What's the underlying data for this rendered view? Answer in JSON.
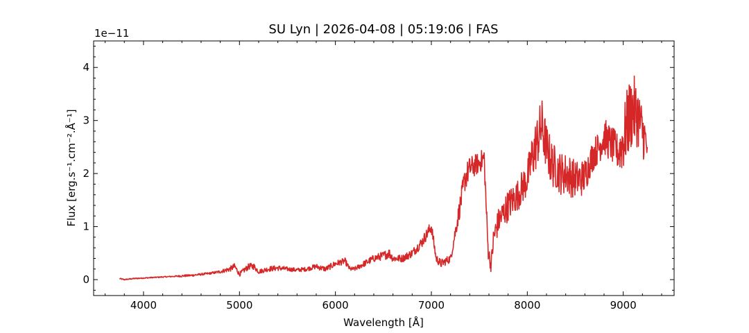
{
  "chart_data": {
    "type": "line",
    "title": "SU Lyn | 2026-04-08 | 05:19:06 | FAS",
    "xlabel": "Wavelength [Å]",
    "ylabel": "Flux [erg.s⁻¹.cm⁻².Å⁻¹]",
    "y_multiplier": "1e−11",
    "xlim": [
      3480,
      9530
    ],
    "ylim": [
      -0.3,
      4.5
    ],
    "x_ticks": [
      4000,
      5000,
      6000,
      7000,
      8000,
      9000
    ],
    "x_tick_labels": [
      "4000",
      "5000",
      "6000",
      "7000",
      "8000",
      "9000"
    ],
    "y_ticks": [
      0,
      1,
      2,
      3,
      4
    ],
    "y_tick_labels": [
      "0",
      "1",
      "2",
      "3",
      "4"
    ],
    "grid": false,
    "legend": "none",
    "series_color": "#d62728",
    "series": [
      {
        "x": [
          3750,
          3800,
          3900,
          4000,
          4100,
          4200,
          4300,
          4400,
          4500,
          4600,
          4700,
          4800,
          4900,
          4950,
          5000,
          5050,
          5100,
          5150,
          5200,
          5300,
          5400,
          5500,
          5600,
          5700,
          5800,
          5850,
          5900,
          6000,
          6100,
          6150,
          6200,
          6300,
          6400,
          6500,
          6560,
          6600,
          6700,
          6800,
          6900,
          7000,
          7050,
          7100,
          7200,
          7300,
          7350,
          7400,
          7500,
          7550,
          7590,
          7620,
          7650,
          7700,
          7800,
          7900,
          8000,
          8050,
          8100,
          8150,
          8200,
          8250,
          8300,
          8350,
          8400,
          8450,
          8500,
          8550,
          8600,
          8650,
          8700,
          8750,
          8800,
          8850,
          8900,
          8950,
          9000,
          9050,
          9100,
          9150,
          9200,
          9250
        ],
        "y": [
          0.02,
          0.0,
          0.02,
          0.03,
          0.04,
          0.05,
          0.06,
          0.07,
          0.08,
          0.1,
          0.12,
          0.15,
          0.2,
          0.25,
          0.1,
          0.18,
          0.25,
          0.25,
          0.15,
          0.2,
          0.22,
          0.2,
          0.18,
          0.2,
          0.25,
          0.22,
          0.2,
          0.3,
          0.35,
          0.2,
          0.2,
          0.3,
          0.4,
          0.45,
          0.5,
          0.4,
          0.4,
          0.5,
          0.7,
          1.0,
          0.4,
          0.3,
          0.4,
          1.4,
          1.9,
          2.1,
          2.2,
          2.3,
          0.6,
          0.25,
          0.8,
          1.1,
          1.4,
          1.6,
          1.9,
          2.3,
          2.6,
          2.9,
          2.5,
          2.2,
          2.1,
          2.0,
          2.0,
          1.95,
          1.9,
          1.9,
          1.95,
          2.2,
          2.4,
          2.5,
          2.7,
          2.6,
          2.5,
          2.4,
          2.6,
          3.0,
          3.2,
          3.1,
          2.8,
          2.5
        ],
        "noise": [
          0.01,
          0.01,
          0.01,
          0.01,
          0.01,
          0.01,
          0.01,
          0.02,
          0.02,
          0.02,
          0.02,
          0.03,
          0.05,
          0.06,
          0.04,
          0.05,
          0.06,
          0.06,
          0.04,
          0.05,
          0.05,
          0.04,
          0.04,
          0.04,
          0.05,
          0.05,
          0.05,
          0.06,
          0.06,
          0.04,
          0.04,
          0.06,
          0.07,
          0.08,
          0.1,
          0.07,
          0.07,
          0.08,
          0.1,
          0.12,
          0.08,
          0.08,
          0.08,
          0.2,
          0.25,
          0.22,
          0.2,
          0.2,
          0.2,
          0.1,
          0.25,
          0.25,
          0.3,
          0.3,
          0.35,
          0.45,
          0.5,
          0.55,
          0.45,
          0.45,
          0.4,
          0.4,
          0.4,
          0.4,
          0.35,
          0.35,
          0.35,
          0.3,
          0.3,
          0.3,
          0.35,
          0.35,
          0.35,
          0.35,
          0.6,
          0.7,
          0.7,
          0.6,
          0.5,
          0.4
        ]
      }
    ]
  }
}
